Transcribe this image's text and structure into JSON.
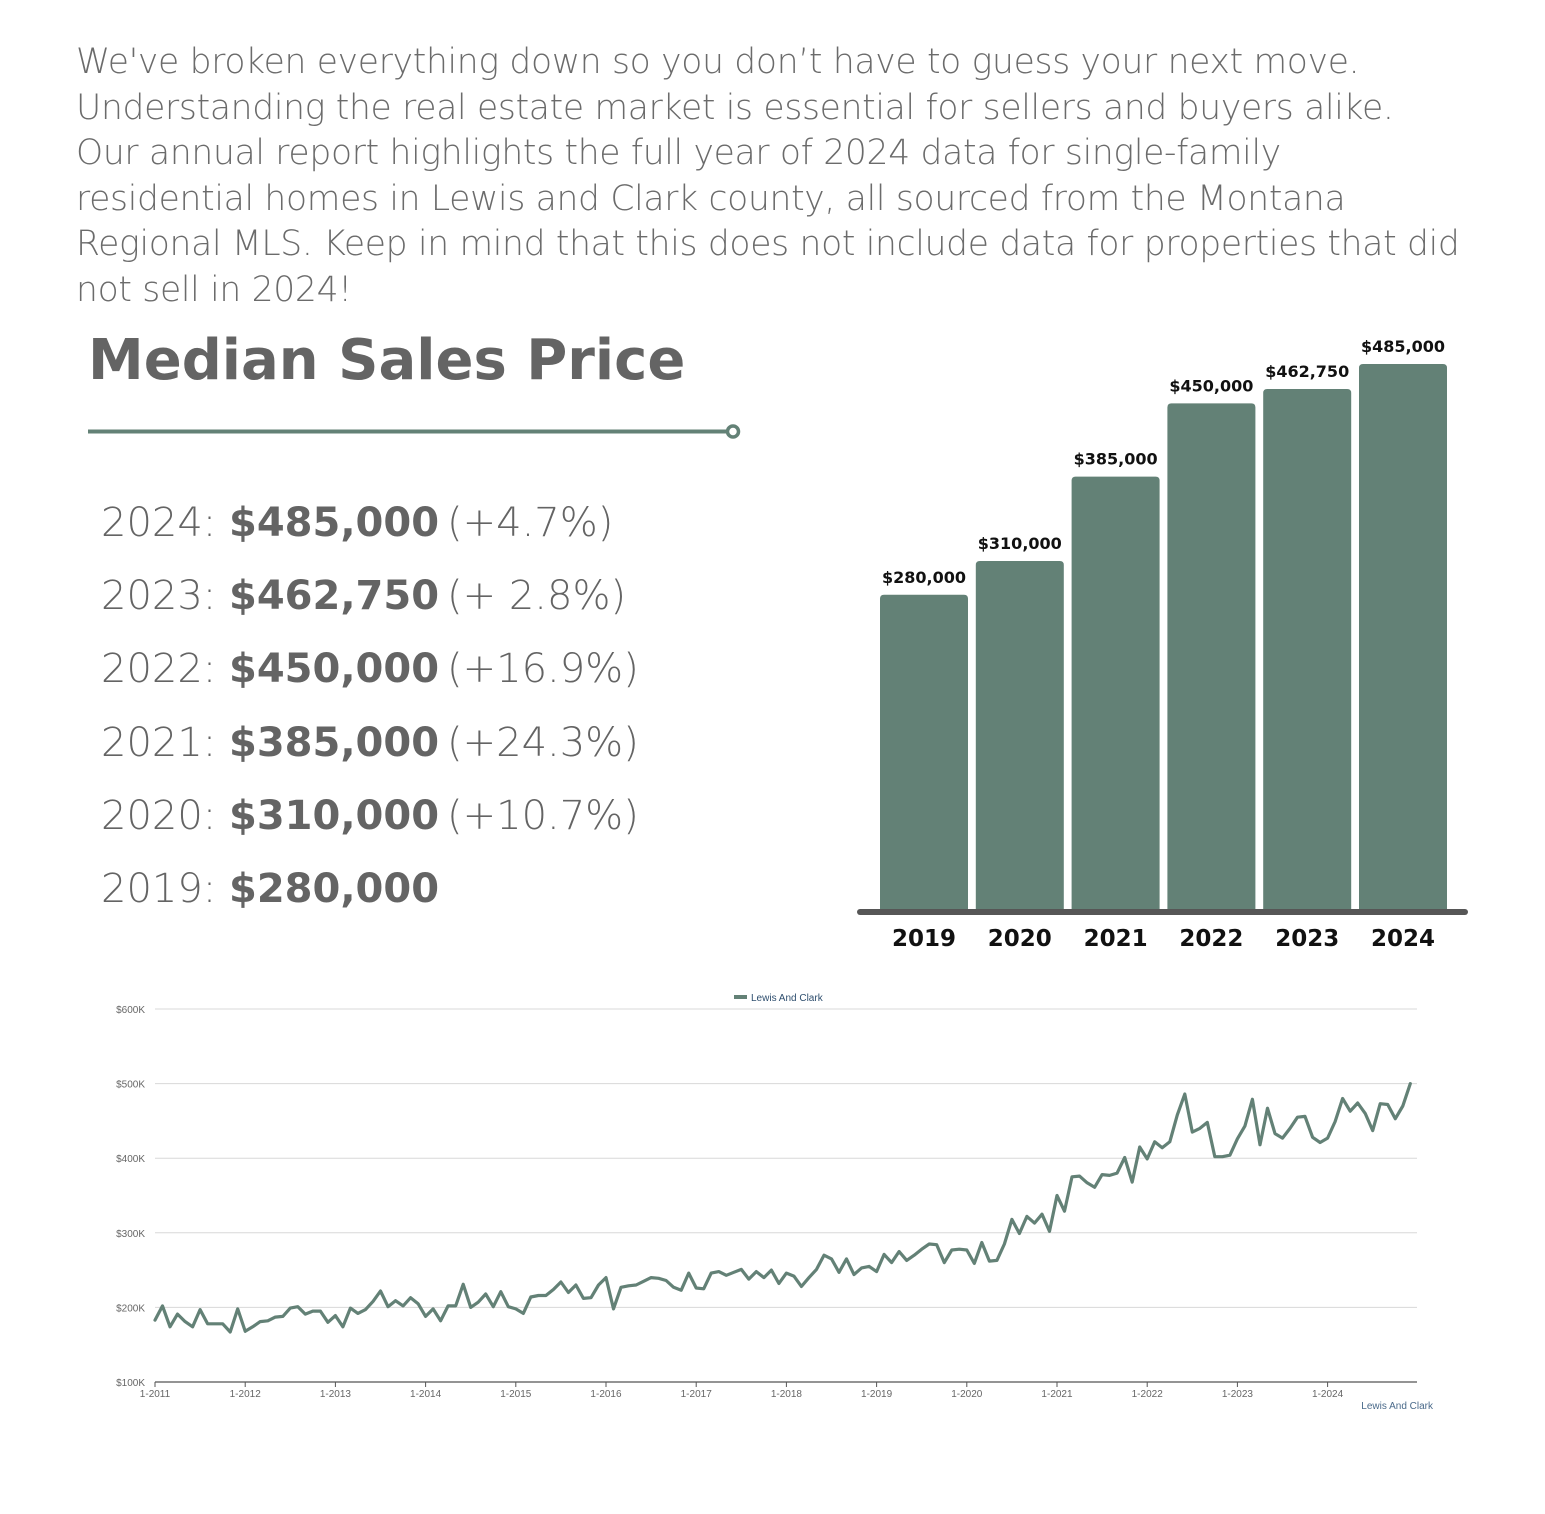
{
  "intro": {
    "text": "We've broken everything down so you don’t have to guess your next move. Understanding the real estate market is essential for sellers and buyers alike. Our annual report highlights the full year of 2024 data for single-family residential homes in Lewis and Clark county, all sourced from the Montana Regional MLS. Keep in mind that this does not include data for properties that did not sell in 2024!"
  },
  "section": {
    "title": "Median Sales Price"
  },
  "years": [
    {
      "year": "2024:",
      "price": "$485,000",
      "change": "(+4.7%)"
    },
    {
      "year": "2023:",
      "price": "$462,750",
      "change": "(+ 2.8%)"
    },
    {
      "year": "2022:",
      "price": "$450,000",
      "change": "(+16.9%)"
    },
    {
      "year": "2021:",
      "price": "$385,000",
      "change": "(+24.3%)"
    },
    {
      "year": "2020:",
      "price": "$310,000",
      "change": "(+10.7%)"
    },
    {
      "year": "2019:",
      "price": "$280,000",
      "change": ""
    }
  ],
  "colors": {
    "accent": "#638176",
    "text": "#646464",
    "axis": "#565656",
    "grid": "#d8d8d8",
    "legend_text": "#2e4e6e"
  },
  "chart_data": [
    {
      "type": "bar",
      "categories": [
        "2019",
        "2020",
        "2021",
        "2022",
        "2023",
        "2024"
      ],
      "values": [
        280000,
        310000,
        385000,
        450000,
        462750,
        485000
      ],
      "data_labels": [
        "$280,000",
        "$310,000",
        "$385,000",
        "$450,000",
        "$462,750",
        "$485,000"
      ],
      "title": "",
      "xlabel": "",
      "ylabel": "",
      "ylim": [
        0,
        485000
      ],
      "color": "#638176"
    },
    {
      "type": "line",
      "title": "",
      "xlabel": "",
      "ylabel": "",
      "legend": {
        "position": "top-center",
        "label": "Lewis And Clark"
      },
      "watermark": "Lewis And Clark",
      "ylim": [
        100000,
        600000
      ],
      "y_ticks": [
        {
          "value": 100000,
          "label": "$100K"
        },
        {
          "value": 200000,
          "label": "$200K"
        },
        {
          "value": 300000,
          "label": "$300K"
        },
        {
          "value": 400000,
          "label": "$400K"
        },
        {
          "value": 500000,
          "label": "$500K"
        },
        {
          "value": 600000,
          "label": "$600K"
        }
      ],
      "x_ticks": [
        "1-2011",
        "1-2012",
        "1-2013",
        "1-2014",
        "1-2015",
        "1-2016",
        "1-2017",
        "1-2018",
        "1-2019",
        "1-2020",
        "1-2021",
        "1-2022",
        "1-2023",
        "1-2024"
      ],
      "x_start": "1-2011",
      "x_end": "12-2024",
      "grid": true,
      "series": [
        {
          "name": "Lewis And Clark",
          "values": [
            183000,
            202000,
            174000,
            191000,
            181000,
            174000,
            197000,
            178000,
            178000,
            178000,
            167000,
            198000,
            168000,
            174000,
            181000,
            182000,
            187000,
            188000,
            199000,
            201000,
            191000,
            195000,
            195000,
            180000,
            189000,
            174000,
            199000,
            192000,
            197000,
            208000,
            222000,
            201000,
            209000,
            202000,
            213000,
            205000,
            188000,
            198000,
            182000,
            202000,
            202000,
            231000,
            200000,
            207000,
            218000,
            201000,
            221000,
            201000,
            198000,
            192000,
            214000,
            216000,
            216000,
            224000,
            234000,
            220000,
            230000,
            212000,
            213000,
            230000,
            240000,
            198000,
            227000,
            229000,
            230000,
            235000,
            240000,
            239000,
            236000,
            227000,
            223000,
            246000,
            226000,
            225000,
            246000,
            248000,
            243000,
            247000,
            251000,
            238000,
            248000,
            240000,
            250000,
            232000,
            246000,
            242000,
            228000,
            240000,
            251000,
            270000,
            265000,
            247000,
            265000,
            244000,
            253000,
            255000,
            248000,
            271000,
            260000,
            275000,
            263000,
            270000,
            278000,
            285000,
            284000,
            260000,
            277000,
            278000,
            277000,
            259000,
            287000,
            262000,
            263000,
            285000,
            318000,
            299000,
            322000,
            313000,
            325000,
            302000,
            350000,
            329000,
            375000,
            376000,
            367000,
            361000,
            378000,
            377000,
            380000,
            401000,
            368000,
            415000,
            399000,
            422000,
            414000,
            422000,
            458000,
            486000,
            435000,
            440000,
            448000,
            402000,
            402000,
            404000,
            426000,
            443000,
            479000,
            418000,
            467000,
            433000,
            427000,
            440000,
            455000,
            456000,
            428000,
            421000,
            427000,
            449000,
            480000,
            463000,
            474000,
            460000,
            437000,
            473000,
            472000,
            453000,
            470000,
            500000
          ]
        }
      ]
    }
  ]
}
